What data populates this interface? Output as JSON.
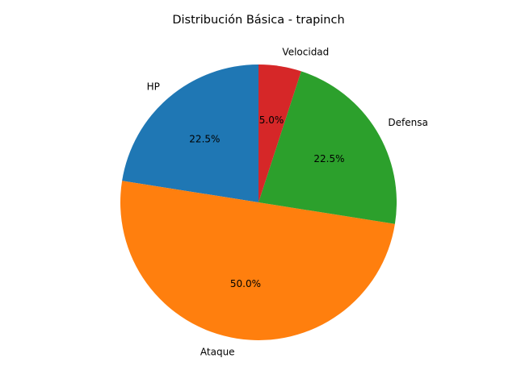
{
  "chart_data": {
    "type": "pie",
    "title": "Distribución Básica - trapinch",
    "categories": [
      "HP",
      "Ataque",
      "Defensa",
      "Velocidad"
    ],
    "values": [
      22.5,
      50.0,
      22.5,
      5.0
    ],
    "percent_labels": [
      "22.5%",
      "50.0%",
      "22.5%",
      "5.0%"
    ],
    "colors": [
      "#1f77b4",
      "#ff7f0e",
      "#2ca02c",
      "#d62728"
    ],
    "start_angle_deg": 90,
    "direction": "counterclockwise",
    "legend": "none"
  }
}
